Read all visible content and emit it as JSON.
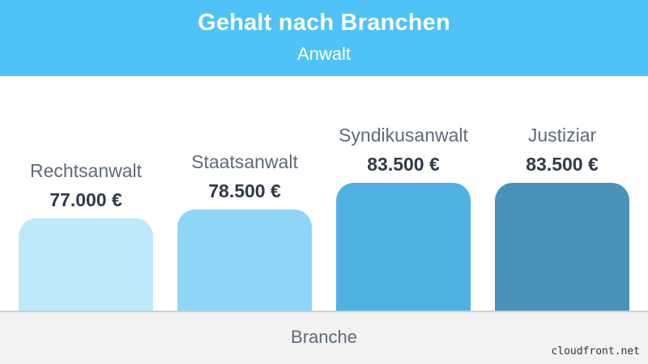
{
  "chart_data": {
    "type": "bar",
    "title": "Gehalt nach Branchen",
    "subtitle": "Anwalt",
    "xlabel": "Branche",
    "ylabel": "",
    "categories": [
      "Rechtsanwalt",
      "Staatsanwalt",
      "Syndikusanwalt",
      "Justiziar"
    ],
    "values": [
      77000,
      78500,
      83500,
      83500
    ],
    "value_labels": [
      "77.000 €",
      "78.500 €",
      "83.500 €",
      "83.500 €"
    ],
    "colors": [
      "#bde9fb",
      "#8ed5f7",
      "#4fb1e2",
      "#4a93b8"
    ],
    "grid": false,
    "legend": "none"
  },
  "colors": {
    "header": "#4fc3f7",
    "footer": "#f2f2f2"
  },
  "watermark": "cloudfront.net"
}
